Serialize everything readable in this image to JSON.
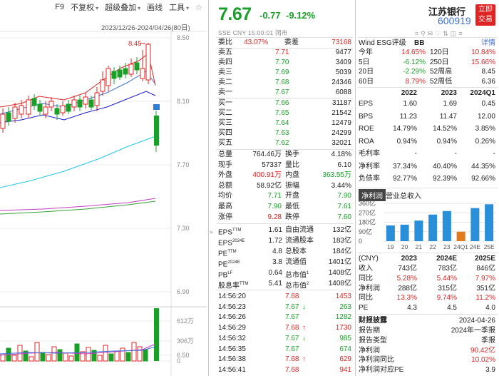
{
  "toolbar": {
    "f9": "F9",
    "fq": "不复权",
    "overlay": "超级叠加",
    "draw": "画线",
    "tools": "工具",
    "star": "☆",
    "range": "2023/12/26-2024/04/26(80日)"
  },
  "chart": {
    "y_ticks": [
      "8.50",
      "8.10",
      "7.70",
      "7.30",
      "6.90",
      "6.50"
    ],
    "high_label": "8.45",
    "vol_ticks": [
      "612万",
      "306万",
      "0"
    ],
    "ma_colors": {
      "ma5": "#e02424",
      "ma10": "#3a6fd8",
      "ma20": "#1a1ad0",
      "ma60": "#20c8e8",
      "ma120": "#c040c0",
      "ma250": "#38a038"
    }
  },
  "quote": {
    "price": "7.67",
    "change": "-0.77",
    "pct": "-9.12%",
    "meta": "SSE  CNY  15:00:01  闭市",
    "wei_bi_label": "委比",
    "wei_bi": "43.07%",
    "wei_cha_label": "委差",
    "wei_cha": "73168",
    "asks": [
      {
        "label": "卖五",
        "price": "7.71",
        "vol": "9477",
        "pc": "red"
      },
      {
        "label": "卖四",
        "price": "7.70",
        "vol": "3409",
        "pc": "green"
      },
      {
        "label": "卖三",
        "price": "7.69",
        "vol": "5039",
        "pc": "green"
      },
      {
        "label": "卖二",
        "price": "7.68",
        "vol": "24346",
        "pc": "green"
      },
      {
        "label": "卖一",
        "price": "7.67",
        "vol": "6088",
        "pc": "green"
      }
    ],
    "bids": [
      {
        "label": "买一",
        "price": "7.66",
        "vol": "31187"
      },
      {
        "label": "买二",
        "price": "7.65",
        "vol": "21542"
      },
      {
        "label": "买三",
        "price": "7.64",
        "vol": "12479"
      },
      {
        "label": "买四",
        "price": "7.63",
        "vol": "24299"
      },
      {
        "label": "买五",
        "price": "7.62",
        "vol": "32021"
      }
    ],
    "stats": [
      {
        "l1": "总量",
        "v1": "764.46万",
        "c1": "",
        "l2": "换手",
        "v2": "4.18%",
        "c2": ""
      },
      {
        "l1": "现手",
        "v1": "57337",
        "c1": "",
        "l2": "量比",
        "v2": "6.10",
        "c2": ""
      },
      {
        "l1": "外盘",
        "v1": "400.91万",
        "c1": "red",
        "l2": "内盘",
        "v2": "363.55万",
        "c2": "green"
      },
      {
        "l1": "总额",
        "v1": "58.92亿",
        "c1": "",
        "l2": "振幅",
        "v2": "3.44%",
        "c2": ""
      },
      {
        "l1": "均价",
        "v1": "7.71",
        "c1": "green",
        "l2": "开盘",
        "v2": "7.90",
        "c2": "green"
      },
      {
        "l1": "最高",
        "v1": "7.90",
        "c1": "green",
        "l2": "最低",
        "v2": "7.61",
        "c2": "green"
      },
      {
        "l1": "涨停",
        "v1": "9.28",
        "c1": "red",
        "l2": "跌停",
        "v2": "7.60",
        "c2": "green"
      }
    ],
    "fund": [
      {
        "l1": "EPS",
        "s1": "TTM",
        "v1": "1.61",
        "l2": "自由流通",
        "v2": "132亿"
      },
      {
        "l1": "EPS",
        "s1": "2024E",
        "v1": "1.72",
        "l2": "流通股本",
        "v2": "183亿"
      },
      {
        "l1": "PE",
        "s1": "TTM",
        "v1": "4.8",
        "l2": "总股本",
        "v2": "184亿"
      },
      {
        "l1": "PE",
        "s1": "2024E",
        "v1": "3.8",
        "l2": "流通值",
        "v2": "1401亿"
      },
      {
        "l1": "PB",
        "s1": "LF",
        "v1": "0.64",
        "l2": "总市值",
        "s2": "1",
        "v2": "1408亿"
      },
      {
        "l1": "股息率",
        "s1": "TTM",
        "v1": "5.41",
        "l2": "总市值",
        "s2": "2",
        "v2": "1408亿"
      }
    ],
    "ticks": [
      {
        "t": "14:56:20",
        "p": "7.68",
        "a": "",
        "v": "1453",
        "c": "red"
      },
      {
        "t": "14:56:23",
        "p": "7.67",
        "a": "↓",
        "v": "263",
        "c": "green"
      },
      {
        "t": "14:56:26",
        "p": "7.67",
        "a": "",
        "v": "1282",
        "c": "green"
      },
      {
        "t": "14:56:29",
        "p": "7.68",
        "a": "↑",
        "v": "1730",
        "c": "red"
      },
      {
        "t": "14:56:32",
        "p": "7.67",
        "a": "↓",
        "v": "985",
        "c": "green"
      },
      {
        "t": "14:56:35",
        "p": "7.67",
        "a": "",
        "v": "674",
        "c": "green"
      },
      {
        "t": "14:56:38",
        "p": "7.68",
        "a": "↑",
        "v": "629",
        "c": "red"
      },
      {
        "t": "14:56:41",
        "p": "7.68",
        "a": "",
        "v": "941",
        "c": "red"
      }
    ]
  },
  "side": {
    "name": "江苏银行",
    "code": "600919",
    "badge1": "立即",
    "badge2": "交易",
    "wind_label": "Wind ESG评级",
    "wind_val": "BB",
    "detail": "详情",
    "perf": [
      {
        "l1": "今年",
        "v1": "14.65%",
        "c1": "red",
        "l2": "120日",
        "v2": "10.84%",
        "c2": "red"
      },
      {
        "l1": "5日",
        "v1": "-6.12%",
        "c1": "green",
        "l2": "250日",
        "v2": "15.66%",
        "c2": "red"
      },
      {
        "l1": "20日",
        "v1": "-2.29%",
        "c1": "green",
        "l2": "52周高",
        "v2": "8.45",
        "c2": ""
      },
      {
        "l1": "60日",
        "v1": "8.79%",
        "c1": "red",
        "l2": "52周低",
        "v2": "6.36",
        "c2": ""
      }
    ],
    "fin_head": [
      "2022",
      "2023",
      "2024Q1"
    ],
    "fin": [
      {
        "l": "EPS",
        "a": "1.60",
        "b": "1.69",
        "c": "0.45"
      },
      {
        "l": "BPS",
        "a": "11.23",
        "b": "11.47",
        "c": "12.00"
      },
      {
        "l": "ROE",
        "a": "14.79%",
        "b": "14.52%",
        "c": "3.85%"
      },
      {
        "l": "ROA",
        "a": "0.94%",
        "b": "0.94%",
        "c": "0.26%"
      },
      {
        "l": "毛利率",
        "a": "-",
        "b": "-",
        "c": "-"
      },
      {
        "l": "净利率",
        "a": "37.34%",
        "b": "40.40%",
        "c": "44.35%"
      },
      {
        "l": "负债率",
        "a": "92.77%",
        "b": "92.39%",
        "c": "92.66%"
      }
    ],
    "tab1": "净利润",
    "tab2": "营业总收入",
    "bar_chart": {
      "y_ticks": [
        "360亿",
        "270亿",
        "180亿",
        "90亿",
        "0"
      ],
      "x_ticks": [
        "19",
        "20",
        "21",
        "22",
        "23",
        "24Q1",
        "24E",
        "25E"
      ]
    },
    "cny_label": "(CNY)",
    "est_head": [
      "2023",
      "2024E",
      "2025E"
    ],
    "est": [
      {
        "l": "收入",
        "a": "743亿",
        "b": "783亿",
        "c": "846亿",
        "ca": "",
        "cb": "",
        "cc": ""
      },
      {
        "l": "同比",
        "a": "5.28%",
        "b": "5.44%",
        "c": "7.97%",
        "ca": "red",
        "cb": "red",
        "cc": "red"
      },
      {
        "l": "净利润",
        "a": "288亿",
        "b": "315亿",
        "c": "351亿",
        "ca": "",
        "cb": "",
        "cc": ""
      },
      {
        "l": "同比",
        "a": "13.3%",
        "b": "9.74%",
        "c": "11.2%",
        "ca": "red",
        "cb": "red",
        "cc": "red"
      },
      {
        "l": "PE",
        "a": "4.3",
        "b": "4.5",
        "c": "4.0",
        "ca": "",
        "cb": "",
        "cc": ""
      }
    ],
    "report_title": "财报披露",
    "report_date": "2024-04-26",
    "report": [
      {
        "l": "报告期",
        "v": "2024年一季报",
        "c": ""
      },
      {
        "l": "报告类型",
        "v": "季报",
        "c": ""
      },
      {
        "l": "净利润",
        "v": "90.42亿",
        "c": "red"
      },
      {
        "l": "净利润同比",
        "v": "10.02%",
        "c": "red"
      },
      {
        "l": "净利润对应PE",
        "v": "3.9",
        "c": ""
      }
    ]
  },
  "chart_data": {
    "type": "bar",
    "categories": [
      "19",
      "20",
      "21",
      "22",
      "23",
      "24Q1",
      "24E",
      "25E"
    ],
    "values": [
      150,
      157,
      196,
      253,
      287,
      90,
      315,
      351
    ],
    "ylim": [
      0,
      360
    ],
    "y_ticks": [
      "360亿",
      "270亿",
      "180亿",
      "90亿",
      "0"
    ]
  }
}
